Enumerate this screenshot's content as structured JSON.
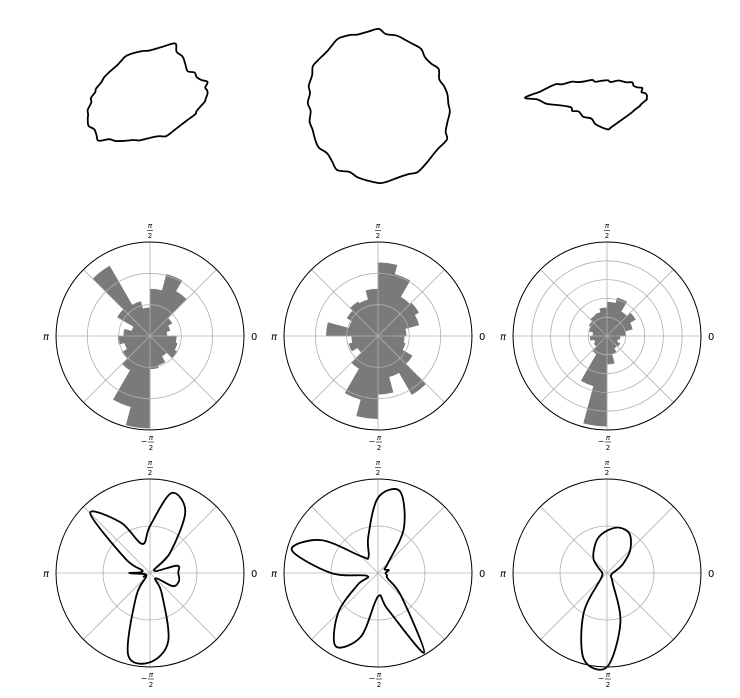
{
  "chart_data": [
    {
      "type": "shape-outline",
      "row": "shapes",
      "column": 1,
      "x_offsets": [
        0.0,
        0.22,
        0.5,
        0.85,
        0.52,
        0.6,
        0.5,
        0.0,
        -0.5,
        -0.62,
        -0.5,
        -0.22
      ],
      "y_offsets": [
        0.0,
        0.0,
        0.0,
        0.0,
        0.0,
        0.0,
        0.0,
        0.0,
        0.0,
        0.0,
        0.0,
        0.0
      ],
      "radii": [
        0.72,
        0.74,
        0.9,
        0.98,
        0.58,
        0.55,
        0.52,
        0.62,
        0.78,
        0.78,
        0.88,
        0.8
      ]
    },
    {
      "type": "shape-outline",
      "row": "shapes",
      "column": 2,
      "radii": [
        0.9,
        0.97,
        1.0,
        0.98,
        0.92,
        0.88,
        0.92,
        1.0,
        1.05,
        1.08,
        1.02,
        0.95
      ]
    },
    {
      "type": "shape-outline",
      "row": "shapes",
      "column": 3,
      "radii": [
        1.0,
        0.72,
        0.52,
        0.45,
        0.5,
        0.48,
        0.5,
        0.45,
        0.52,
        0.85,
        0.55,
        0.52
      ]
    },
    {
      "type": "bar",
      "polar": true,
      "row": "rose",
      "column": 1,
      "r_ticks": [
        0.333,
        0.667,
        1.0
      ],
      "theta_labels": [
        "0",
        "π/2",
        "π",
        "−π/2"
      ],
      "values": [
        0.18,
        0.22,
        0.27,
        0.55,
        0.68,
        0.5,
        0.3,
        0.38,
        0.86,
        0.4,
        0.2,
        0.28,
        0.34,
        0.28,
        0.34,
        0.42,
        0.78,
        0.98,
        0.35,
        0.32,
        0.25,
        0.33,
        0.3,
        0.28
      ]
    },
    {
      "type": "bar",
      "polar": true,
      "row": "rose",
      "column": 2,
      "r_ticks": [
        0.333,
        0.667,
        1.0
      ],
      "theta_labels": [
        "0",
        "π/2",
        "π",
        "−π/2"
      ],
      "values": [
        0.3,
        0.45,
        0.5,
        0.48,
        0.68,
        0.78,
        0.5,
        0.4,
        0.42,
        0.38,
        0.32,
        0.55,
        0.28,
        0.32,
        0.25,
        0.4,
        0.7,
        0.88,
        0.62,
        0.45,
        0.72,
        0.42,
        0.3,
        0.28
      ]
    },
    {
      "type": "bar",
      "polar": true,
      "row": "rose",
      "column": 3,
      "r_ticks": [
        0.2,
        0.4,
        0.6,
        0.8,
        1.0
      ],
      "theta_labels": [
        "0",
        "π/2",
        "π",
        "−π/2"
      ],
      "values": [
        0.2,
        0.28,
        0.35,
        0.3,
        0.42,
        0.36,
        0.3,
        0.26,
        0.25,
        0.22,
        0.2,
        0.15,
        0.18,
        0.14,
        0.16,
        0.22,
        0.55,
        0.96,
        0.3,
        0.2,
        0.15,
        0.16,
        0.12,
        0.14
      ]
    },
    {
      "type": "line",
      "polar": true,
      "row": "density",
      "column": 1,
      "r_ticks": [
        0.5,
        1.0
      ],
      "theta_labels": [
        "0",
        "π/2",
        "π",
        "−π/2"
      ],
      "theta": [
        0,
        15,
        30,
        45,
        60,
        75,
        90,
        105,
        120,
        135,
        150,
        165,
        180,
        195,
        210,
        225,
        240,
        255,
        270,
        285,
        300,
        315,
        330,
        345,
        360
      ],
      "r": [
        0.3,
        0.3,
        0.05,
        0.3,
        0.75,
        0.88,
        0.5,
        0.32,
        0.62,
        0.9,
        0.3,
        0.08,
        0.22,
        0.05,
        0.08,
        0.06,
        0.3,
        0.9,
        0.95,
        0.75,
        0.25,
        0.08,
        0.28,
        0.32,
        0.3
      ]
    },
    {
      "type": "line",
      "polar": true,
      "row": "density",
      "column": 2,
      "r_ticks": [
        0.5,
        1.0
      ],
      "theta_labels": [
        "0",
        "π/2",
        "π",
        "−π/2"
      ],
      "theta": [
        0,
        15,
        30,
        45,
        60,
        75,
        90,
        105,
        120,
        135,
        150,
        165,
        180,
        195,
        210,
        225,
        240,
        255,
        270,
        285,
        300,
        315,
        330,
        345,
        360
      ],
      "r": [
        0.08,
        0.12,
        0.08,
        0.15,
        0.55,
        0.9,
        0.8,
        0.4,
        0.2,
        0.25,
        0.7,
        0.95,
        0.5,
        0.12,
        0.25,
        0.6,
        0.9,
        0.7,
        0.25,
        0.4,
        0.98,
        0.35,
        0.12,
        0.1,
        0.08
      ]
    },
    {
      "type": "line",
      "polar": true,
      "row": "density",
      "column": 3,
      "r_ticks": [
        0.5,
        1.0
      ],
      "theta_labels": [
        "0",
        "π/2",
        "π",
        "−π/2"
      ],
      "theta": [
        0,
        15,
        30,
        45,
        60,
        75,
        90,
        105,
        120,
        135,
        150,
        165,
        180,
        195,
        210,
        225,
        240,
        255,
        270,
        285,
        300,
        315,
        330,
        345,
        360
      ],
      "r": [
        0.06,
        0.1,
        0.2,
        0.35,
        0.48,
        0.5,
        0.45,
        0.38,
        0.28,
        0.2,
        0.1,
        0.06,
        0.05,
        0.05,
        0.06,
        0.1,
        0.5,
        0.95,
        1.0,
        0.55,
        0.12,
        0.06,
        0.05,
        0.05,
        0.06
      ]
    }
  ]
}
